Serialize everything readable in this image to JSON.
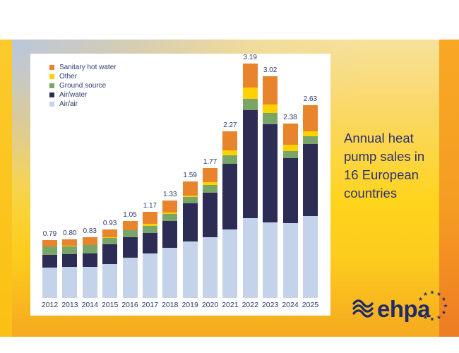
{
  "slide": {
    "title": {
      "lines": [
        "Annual heat",
        "pump sales in",
        "16 European",
        "countries"
      ],
      "color": "#2d3173"
    },
    "logo": {
      "text": "ehpa",
      "color": "#1f2b6b",
      "wave_icon": "waves-icon",
      "stars_icon": "eu-stars-icon",
      "star_glyph": "★"
    },
    "colors": {
      "left_band": "#fbc318",
      "right_band_top": "#f8a825",
      "right_band_bottom": "#ee7c23",
      "background_top_left": "#b3c5e3",
      "background_yellow": "#ffd41c",
      "background_gold": "#f5a91f",
      "card": "#ffffff",
      "label_text": "#2c3a6e"
    }
  },
  "chart_data": {
    "type": "bar",
    "variant": "stacked",
    "categories": [
      "2012",
      "2013",
      "2014",
      "2015",
      "2016",
      "2017",
      "2018",
      "2019",
      "2020",
      "2021",
      "2022",
      "2023",
      "2024",
      "2025"
    ],
    "series": [
      {
        "name": "Air/air",
        "color": "#c5d3ea",
        "values": [
          0.41,
          0.42,
          0.42,
          0.465,
          0.545,
          0.605,
          0.68,
          0.765,
          0.825,
          0.93,
          1.09,
          1.03,
          1.02,
          1.115
        ]
      },
      {
        "name": "Air/water",
        "color": "#2d2c55",
        "values": [
          0.175,
          0.175,
          0.185,
          0.27,
          0.285,
          0.28,
          0.37,
          0.52,
          0.605,
          0.895,
          1.47,
          1.34,
          0.88,
          0.98
        ]
      },
      {
        "name": "Ground source",
        "color": "#7aa569",
        "values": [
          0.115,
          0.11,
          0.115,
          0.085,
          0.09,
          0.095,
          0.095,
          0.09,
          0.105,
          0.115,
          0.155,
          0.145,
          0.105,
          0.11
        ]
      },
      {
        "name": "Other",
        "color": "#ffd100",
        "values": [
          0.005,
          0.005,
          0.005,
          0.005,
          0.005,
          0.03,
          0.02,
          0.02,
          0.04,
          0.07,
          0.155,
          0.115,
          0.08,
          0.065
        ]
      },
      {
        "name": "Sanitary hot water",
        "color": "#e8842b",
        "values": [
          0.085,
          0.09,
          0.105,
          0.105,
          0.125,
          0.16,
          0.165,
          0.195,
          0.195,
          0.26,
          0.32,
          0.39,
          0.295,
          0.36
        ]
      }
    ],
    "totals": [
      "0.79",
      "0.80",
      "0.83",
      "0.93",
      "1.05",
      "1.17",
      "1.33",
      "1.59",
      "1.77",
      "2.27",
      "3.19",
      "3.02",
      "2.38",
      "2.63"
    ],
    "legend_order": [
      "Sanitary hot water",
      "Other",
      "Ground source",
      "Air/water",
      "Air/air"
    ],
    "stack_order_bottom_to_top": [
      "Air/air",
      "Air/water",
      "Ground source",
      "Other",
      "Sanitary hot water"
    ],
    "xlabel": "",
    "ylabel": "",
    "ylim": [
      0,
      3.4
    ],
    "grid": false,
    "legend_position": "top-left"
  }
}
